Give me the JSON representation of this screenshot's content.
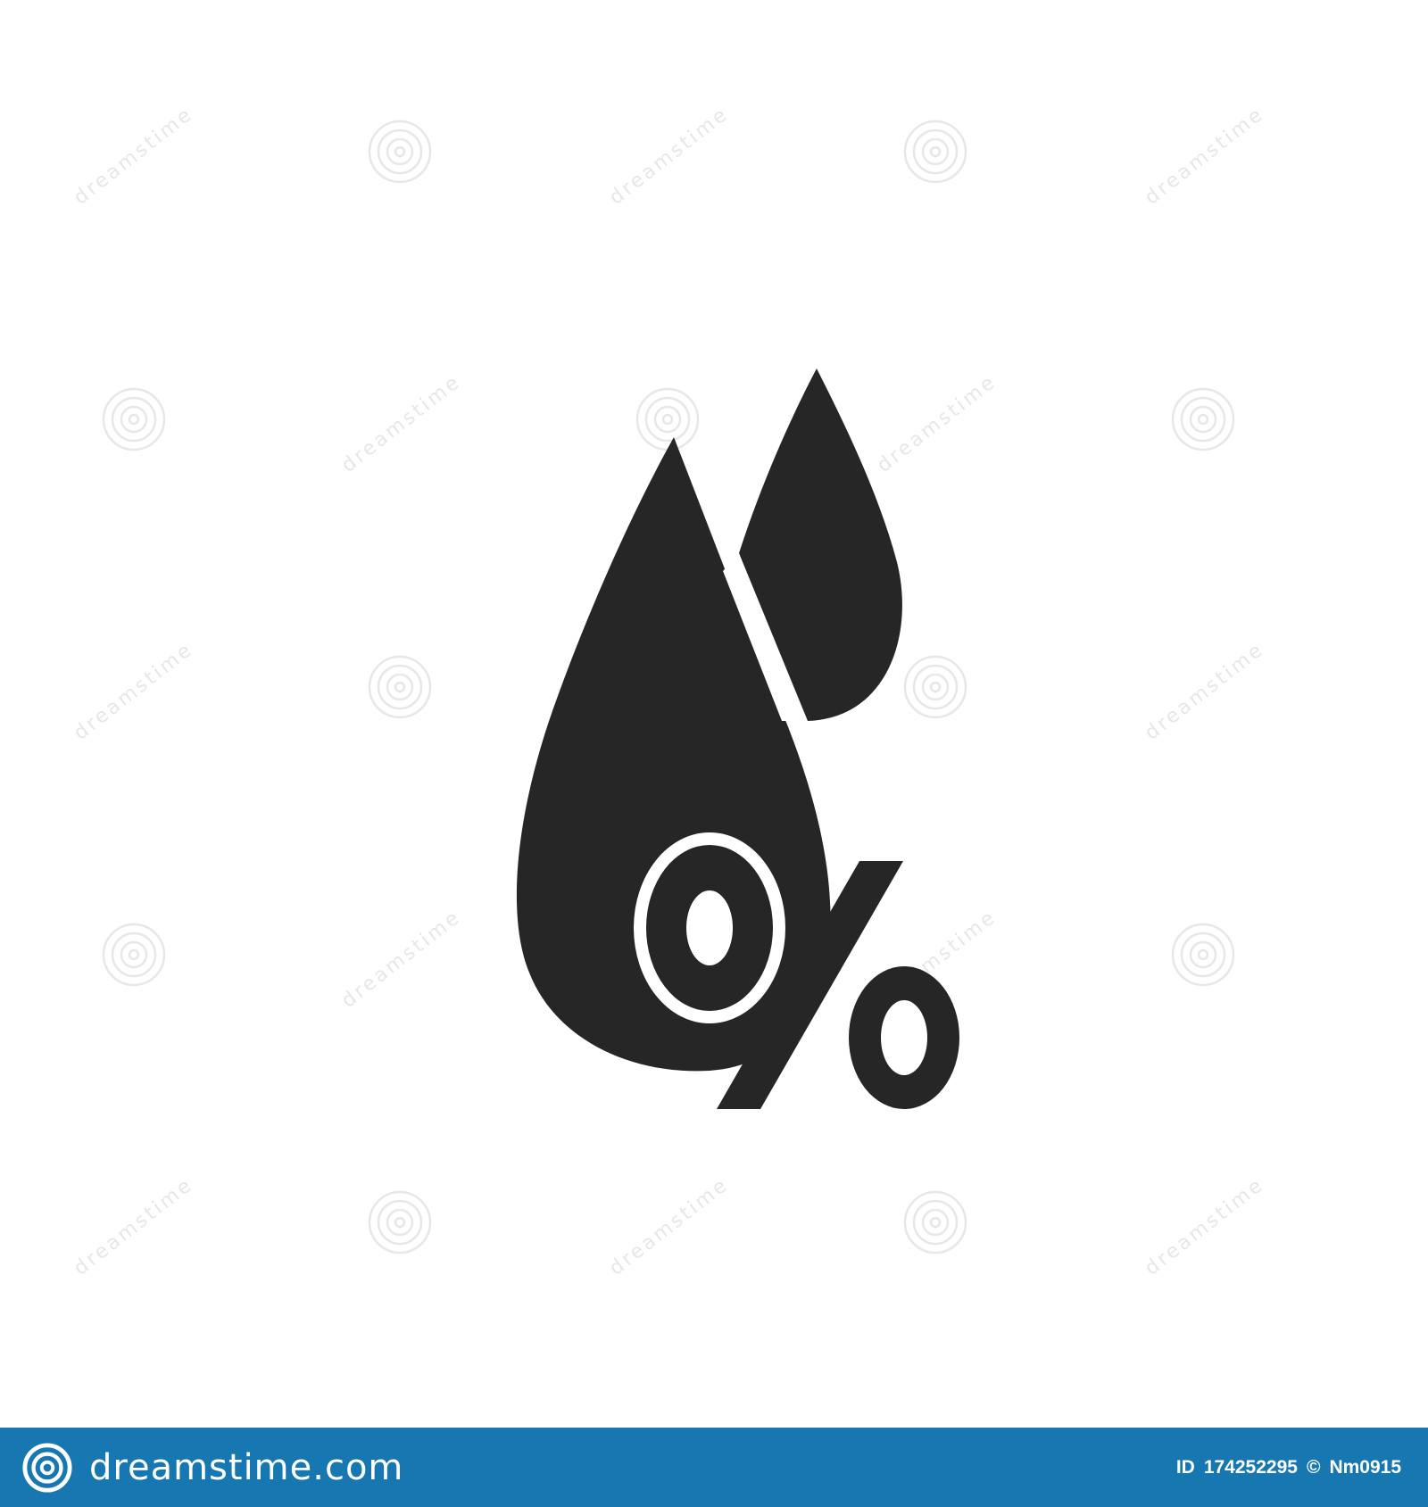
{
  "colors": {
    "background": "#ffffff",
    "icon_fill": "#262626",
    "cutout": "#ffffff",
    "footer_bar": "#1677b1",
    "footer_text": "#ffffff",
    "watermark": "#e7e7e7"
  },
  "watermark": {
    "text": "dreamstime"
  },
  "artwork": {
    "icon_name": "humidity-percent-icon",
    "symbol": "%"
  },
  "footer": {
    "brand_icon": "dreamstime-spiral-logo-icon",
    "brand_name": "dreamstime.com",
    "id_label": "ID",
    "id_value": "174252295",
    "copyright_symbol": "©",
    "author": "Nm0915"
  }
}
